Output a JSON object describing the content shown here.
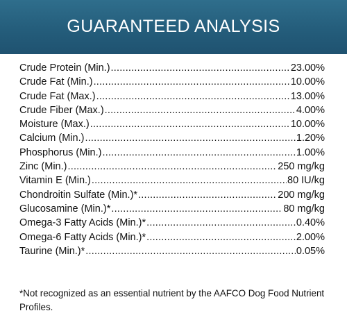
{
  "header": {
    "title": "GUARANTEED ANALYSIS",
    "background_color": "#245d7b"
  },
  "rows": [
    {
      "label": "Crude Protein (Min.)",
      "value": "23.00%"
    },
    {
      "label": "Crude Fat (Min.)",
      "value": "10.00%"
    },
    {
      "label": "Crude Fat (Max.)",
      "value": "13.00%"
    },
    {
      "label": "Crude Fiber (Max.)",
      "value": "4.00%"
    },
    {
      "label": "Moisture (Max.)",
      "value": "10.00%"
    },
    {
      "label": "Calcium (Min.)",
      "value": "1.20%"
    },
    {
      "label": "Phosphorus (Min.)",
      "value": "1.00%"
    },
    {
      "label": "Zinc (Min.)",
      "value": "250 mg/kg"
    },
    {
      "label": "Vitamin E (Min.)",
      "value": "80 IU/kg"
    },
    {
      "label": "Chondroitin Sulfate (Min.)*",
      "value": "200 mg/kg"
    },
    {
      "label": "Glucosamine (Min.)*",
      "value": "80 mg/kg"
    },
    {
      "label": "Omega-3 Fatty Acids (Min.)*",
      "value": "0.40%"
    },
    {
      "label": "Omega-6 Fatty Acids (Min.)*",
      "value": "2.00%"
    },
    {
      "label": "Taurine (Min.)*",
      "value": "0.05%"
    }
  ],
  "footnote": "*Not recognized as an essential nutrient by the AAFCO Dog Food Nutrient Profiles."
}
